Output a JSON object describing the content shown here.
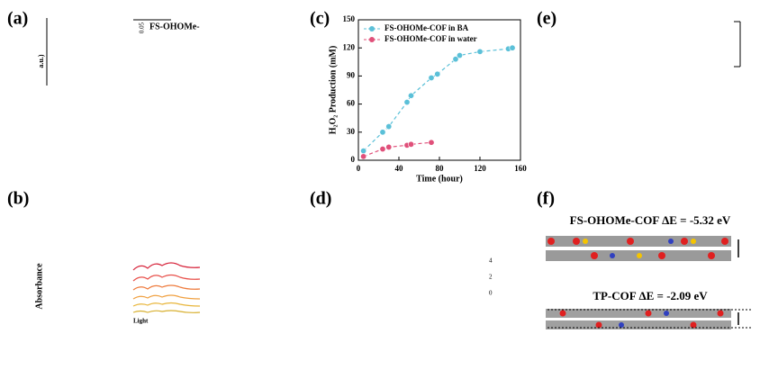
{
  "panels": {
    "a": "(a)",
    "b": "(b)",
    "c": "(c)",
    "d": "(d)",
    "e": "(e)",
    "f": "(f)"
  },
  "panel_a": {
    "legend": "FS-OHOMe-",
    "scale": "0.05",
    "axis_fragment": "a.u.)"
  },
  "panel_b": {
    "y_label": "Absorbance",
    "note": "Light"
  },
  "panel_d": {
    "ticks": [
      "4",
      "2",
      "0"
    ]
  },
  "panel_f": {
    "top_label": "FS-OHOMe-COF ΔE = -5.32 eV",
    "bottom_label": "TP-COF ΔE = -2.09 eV"
  },
  "chart_data": {
    "type": "line",
    "x_label": "Time (hour)",
    "y_label": "H₂O₂ Production (mM)",
    "xlim": [
      0,
      160
    ],
    "xticks": [
      0,
      40,
      80,
      120,
      160
    ],
    "ylim": [
      0,
      150
    ],
    "yticks": [
      0,
      30,
      60,
      90,
      120,
      150
    ],
    "legend": "upper left",
    "series": [
      {
        "name": "FS-OHOMe-COF in BA",
        "color": "#5bc0d8",
        "x": [
          5,
          24,
          30,
          48,
          52,
          72,
          78,
          96,
          100,
          120,
          148,
          152
        ],
        "values": [
          10,
          30,
          36,
          62,
          69,
          88,
          92,
          108,
          112,
          116,
          119,
          120
        ]
      },
      {
        "name": "FS-OHOMe-COF in water",
        "color": "#e0507a",
        "x": [
          5,
          24,
          30,
          48,
          52,
          72
        ],
        "values": [
          4,
          12,
          14,
          16,
          17,
          19
        ]
      }
    ]
  }
}
